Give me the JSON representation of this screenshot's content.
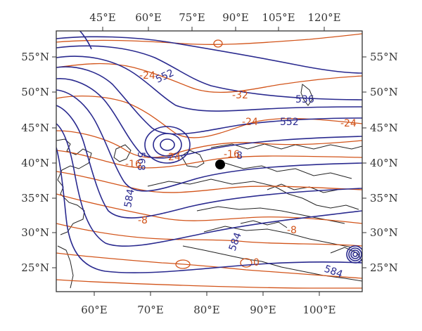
{
  "map": {
    "top_ticks": [
      "45°E",
      "60°E",
      "75°E",
      "90°E",
      "105°E",
      "120°E"
    ],
    "bottom_ticks": [
      "60°E",
      "70°E",
      "80°E",
      "90°E",
      "100°E"
    ],
    "lat_ticks": [
      "55°N",
      "50°N",
      "45°N",
      "40°N",
      "35°N",
      "30°N",
      "25°N"
    ],
    "contour_labels": {
      "height": [
        "552",
        "536",
        "552",
        "568",
        "584",
        "584",
        "584",
        "8"
      ],
      "temperature": [
        "-24",
        "-32",
        "-24",
        "-24",
        "-16",
        "-16",
        "-24",
        "-8",
        "-8",
        "0"
      ]
    },
    "colors": {
      "height_contour": "#2a2a8f",
      "temperature_contour": "#d2541a",
      "station_marker": "#000000"
    },
    "marker": "station-dot"
  }
}
